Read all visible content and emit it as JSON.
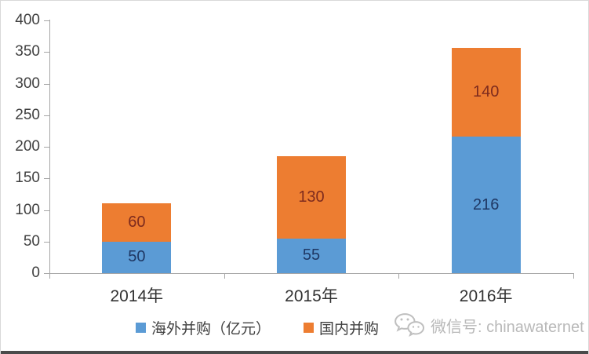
{
  "chart_data": {
    "type": "bar",
    "stacked": true,
    "categories": [
      "2014年",
      "2015年",
      "2016年"
    ],
    "series": [
      {
        "name": "海外并购（亿元）",
        "values": [
          50,
          55,
          216
        ],
        "color": "#5b9bd5",
        "label_color": "#1f3864"
      },
      {
        "name": "国内并购",
        "values": [
          60,
          130,
          140
        ],
        "color": "#ed7d31",
        "label_color": "#7d2b1e"
      }
    ],
    "title": "",
    "xlabel": "",
    "ylabel": "",
    "ylim": [
      0,
      400
    ],
    "ytick_step": 50,
    "yticks": [
      0,
      50,
      100,
      150,
      200,
      250,
      300,
      350,
      400
    ],
    "grid": false,
    "legend_position": "bottom"
  },
  "watermark": {
    "icon": "wechat-icon",
    "text": "微信号: chinawaternet",
    "color": "#b9b9b9"
  },
  "colors": {
    "axis": "#a6a6a6",
    "tick_text": "#404040",
    "category_text": "#333333",
    "frame_border": "#d9d9d9",
    "bottom_bar": "#4a4a4a",
    "background": "#ffffff"
  }
}
